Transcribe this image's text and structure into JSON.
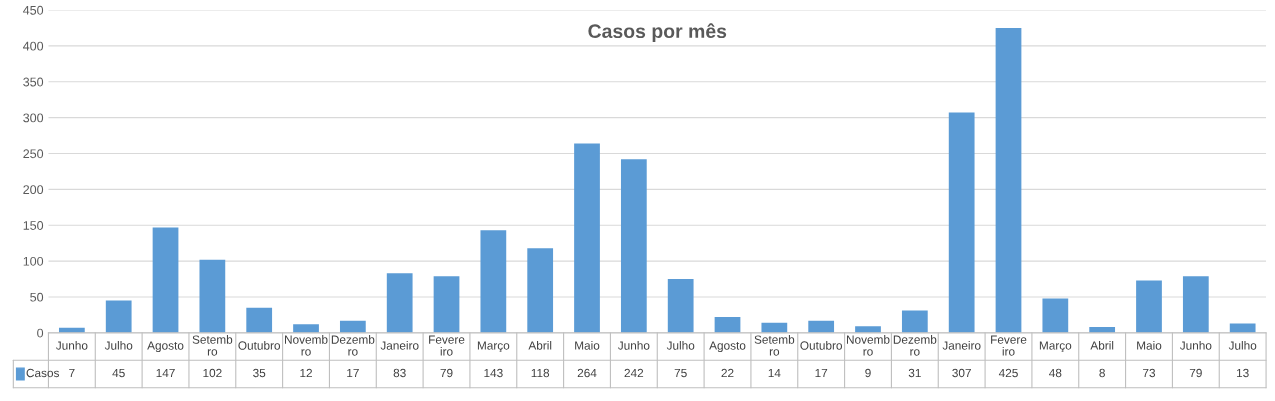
{
  "chart_data": {
    "type": "bar",
    "title": "Casos por mês",
    "categories": [
      "Junho",
      "Julho",
      "Agosto",
      "Setembro",
      "Outubro",
      "Novembro",
      "Dezembro",
      "Janeiro",
      "Fevereiro",
      "Março",
      "Abril",
      "Maio",
      "Junho",
      "Julho",
      "Agosto",
      "Setembro",
      "Outubro",
      "Novembro",
      "Dezembro",
      "Janeiro",
      "Fevereiro",
      "Março",
      "Abril",
      "Maio",
      "Junho",
      "Julho"
    ],
    "series": [
      {
        "name": "Casos",
        "color": "#5b9bd5",
        "values": [
          7,
          45,
          147,
          102,
          35,
          12,
          17,
          83,
          79,
          143,
          118,
          264,
          242,
          75,
          22,
          14,
          17,
          9,
          31,
          307,
          425,
          48,
          8,
          73,
          79,
          13
        ]
      }
    ],
    "ylim": [
      0,
      450
    ],
    "yticks": [
      0,
      50,
      100,
      150,
      200,
      250,
      300,
      350,
      400,
      450
    ],
    "grid": "y",
    "data_labels": true,
    "legend": "bottom"
  }
}
